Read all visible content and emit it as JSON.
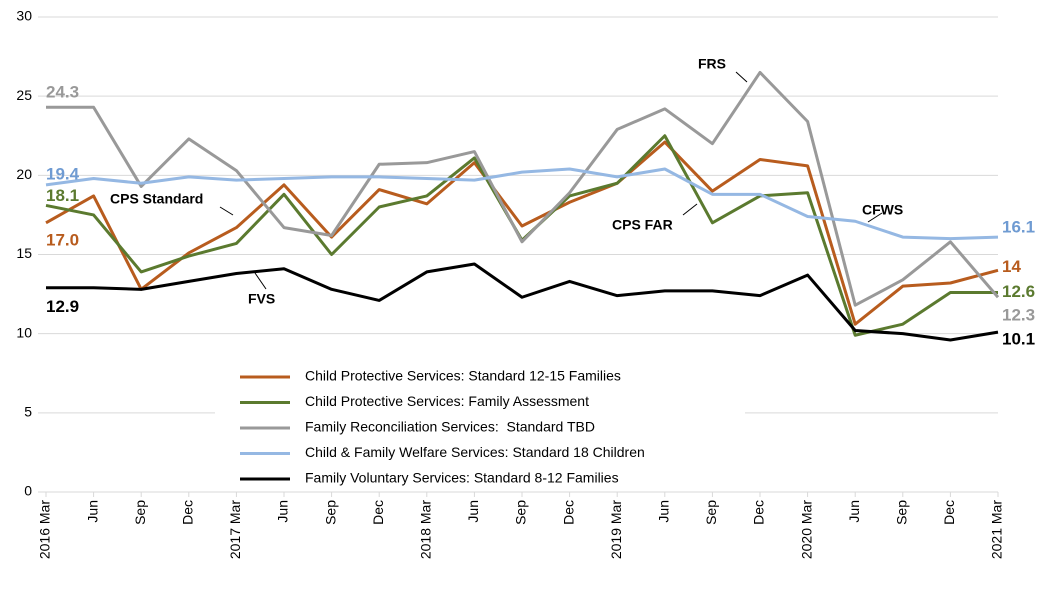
{
  "chart_data": {
    "type": "line",
    "categories": [
      "2016 Mar",
      "Jun",
      "Sep",
      "Dec",
      "2017 Mar",
      "Jun",
      "Sep",
      "Dec",
      "2018 Mar",
      "Jun",
      "Sep",
      "Dec",
      "2019 Mar",
      "Jun",
      "Sep",
      "Dec",
      "2020 Mar",
      "Jun",
      "Sep",
      "Dec",
      "2021 Mar"
    ],
    "series": [
      {
        "name": "Child Protective Services: Standard 12-15 Families",
        "color": "#b85c1e",
        "values": [
          17.0,
          18.7,
          12.8,
          15.1,
          16.7,
          19.4,
          16.1,
          19.1,
          18.2,
          20.8,
          16.8,
          18.3,
          19.5,
          22.1,
          19.0,
          21.0,
          20.6,
          10.6,
          13.0,
          13.2,
          14
        ],
        "value_labels": [
          "17.0",
          null,
          null,
          null,
          null,
          null,
          null,
          null,
          null,
          null,
          null,
          null,
          null,
          null,
          null,
          null,
          null,
          null,
          null,
          null,
          "14"
        ]
      },
      {
        "name": "Child Protective Services: Family Assessment",
        "color": "#5b7a2f",
        "values": [
          18.1,
          17.5,
          13.9,
          14.9,
          15.7,
          18.8,
          15.0,
          18.0,
          18.7,
          21.1,
          15.9,
          18.7,
          19.5,
          22.5,
          17.0,
          18.7,
          18.9,
          9.9,
          10.6,
          12.6,
          12.6
        ],
        "value_labels": [
          "18.1",
          null,
          null,
          null,
          null,
          null,
          null,
          null,
          null,
          null,
          null,
          null,
          null,
          null,
          null,
          null,
          null,
          null,
          null,
          null,
          "12.6"
        ]
      },
      {
        "name": "Family Reconciliation Services:  Standard TBD",
        "color": "#999999",
        "values": [
          24.3,
          24.3,
          19.3,
          22.3,
          20.3,
          16.7,
          16.2,
          20.7,
          20.8,
          21.5,
          15.8,
          18.9,
          22.9,
          24.2,
          22.0,
          26.5,
          23.4,
          11.8,
          13.4,
          15.8,
          12.3
        ],
        "value_labels": [
          "24.3",
          null,
          null,
          null,
          null,
          null,
          null,
          null,
          null,
          null,
          null,
          null,
          null,
          null,
          null,
          null,
          null,
          null,
          null,
          null,
          "12.3"
        ]
      },
      {
        "name": "Child & Family Welfare Services: Standard 18 Children",
        "color": "#95b8e3",
        "values": [
          19.4,
          19.8,
          19.5,
          19.9,
          19.7,
          19.8,
          19.9,
          19.9,
          19.8,
          19.7,
          20.2,
          20.4,
          19.9,
          20.4,
          18.8,
          18.8,
          17.4,
          17.1,
          16.1,
          16.0,
          16.1
        ],
        "value_labels": [
          "19.4",
          null,
          null,
          null,
          null,
          null,
          null,
          null,
          null,
          null,
          null,
          null,
          null,
          null,
          null,
          null,
          null,
          null,
          null,
          null,
          "16.1"
        ]
      },
      {
        "name": "Family Voluntary Services: Standard 8-12 Families",
        "color": "#000000",
        "values": [
          12.9,
          12.9,
          12.8,
          13.3,
          13.8,
          14.1,
          12.8,
          12.1,
          13.9,
          14.4,
          12.3,
          13.3,
          12.4,
          12.7,
          12.7,
          12.4,
          13.7,
          10.2,
          10.0,
          9.6,
          10.1
        ],
        "value_labels": [
          "12.9",
          null,
          null,
          null,
          null,
          null,
          null,
          null,
          null,
          null,
          null,
          null,
          null,
          null,
          null,
          null,
          null,
          null,
          null,
          null,
          "10.1"
        ]
      }
    ],
    "annotations": [
      "CPS Standard",
      "CPS FAR",
      "FRS",
      "CFWS",
      "FVS"
    ],
    "ylim": [
      0,
      30
    ],
    "yticks": [
      0,
      5,
      10,
      15,
      20,
      25,
      30
    ],
    "grid": true
  }
}
